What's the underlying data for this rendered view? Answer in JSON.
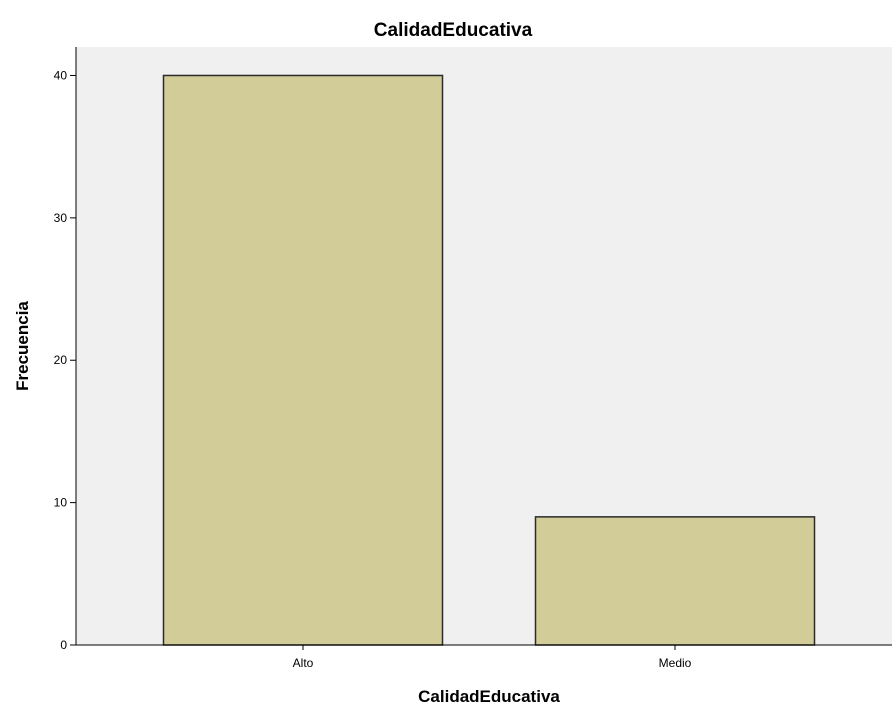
{
  "chart_data": {
    "type": "bar",
    "title": "CalidadEducativa",
    "xlabel": "CalidadEducativa",
    "ylabel": "Frecuencia",
    "categories": [
      "Alto",
      "Medio"
    ],
    "values": [
      40,
      9
    ],
    "ylim": [
      0,
      42
    ],
    "yticks": [
      0,
      10,
      20,
      30,
      40
    ],
    "grid": false,
    "colors": {
      "bar_fill": "#d2cc98",
      "bar_stroke": "#2b2b2b",
      "plot_background": "#f0f0f0"
    }
  }
}
